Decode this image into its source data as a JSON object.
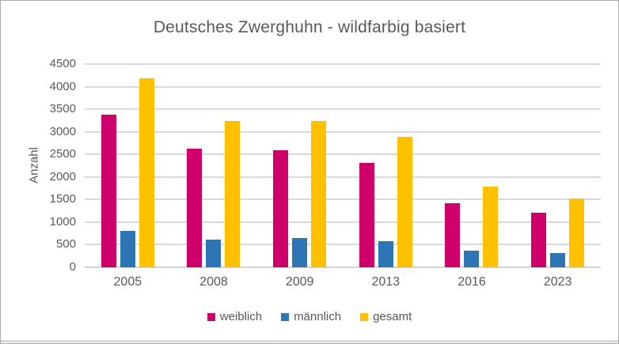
{
  "window": {
    "background": "#FFFFFF",
    "border_color": "#ABABAB"
  },
  "chart_data": {
    "type": "bar",
    "title": "Deutsches Zwerghuhn - wildfarbig basiert",
    "xlabel": "",
    "ylabel": "Anzahl",
    "categories": [
      "2005",
      "2008",
      "2009",
      "2013",
      "2016",
      "2023"
    ],
    "series": [
      {
        "name": "weiblich",
        "color": "#CE0069",
        "values": [
          3380,
          2620,
          2600,
          2320,
          1420,
          1210
        ]
      },
      {
        "name": "männlich",
        "color": "#2E75B6",
        "values": [
          800,
          620,
          640,
          570,
          360,
          320
        ]
      },
      {
        "name": "gesamt",
        "color": "#FFC000",
        "values": [
          4180,
          3240,
          3240,
          2890,
          1780,
          1530
        ]
      }
    ],
    "ylim": [
      0,
      4500
    ],
    "yticks": [
      0,
      500,
      1000,
      1500,
      2000,
      2500,
      3000,
      3500,
      4000,
      4500
    ],
    "grid": true,
    "gridline_color": "#D9D9D9",
    "text_color": "#595959",
    "legend_position": "bottom"
  }
}
